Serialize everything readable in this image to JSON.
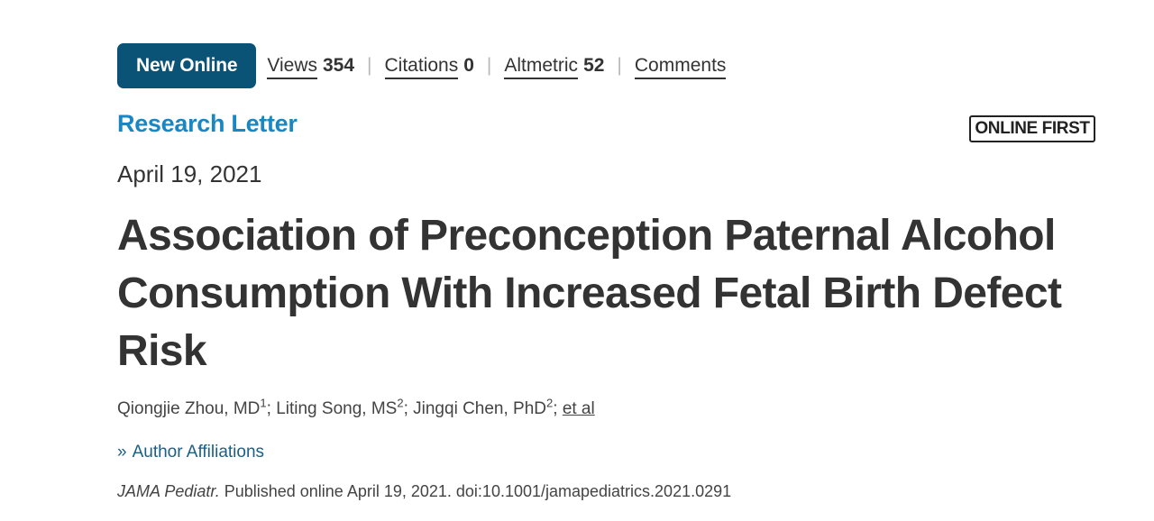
{
  "topbar": {
    "badge": "New Online",
    "metrics": [
      {
        "label": "Views",
        "value": "354"
      },
      {
        "label": "Citations",
        "value": "0"
      },
      {
        "label": "Altmetric",
        "value": "52"
      },
      {
        "label": "Comments",
        "value": ""
      }
    ],
    "separator": "|"
  },
  "article": {
    "section": "Research Letter",
    "status_badge": "ONLINE FIRST",
    "date": "April 19, 2021",
    "title": "Association of Preconception Paternal Alcohol Consumption With Increased Fetal Birth Defect Risk",
    "authors": [
      {
        "name": "Qiongjie Zhou, MD",
        "sup": "1",
        "sep": "; "
      },
      {
        "name": "Liting Song, MS",
        "sup": "2",
        "sep": "; "
      },
      {
        "name": "Jingqi Chen, PhD",
        "sup": "2",
        "sep": "; "
      }
    ],
    "et_al": "et al",
    "affiliations_link": "Author Affiliations",
    "affiliations_icon": "double-chevron-right-icon",
    "citation": {
      "journal": "JAMA Pediatr.",
      "text": " Published online April 19, 2021. doi:10.1001/jamapediatrics.2021.0291"
    }
  },
  "colors": {
    "badge_bg": "#0a5377",
    "section_label": "#1a87c3",
    "link": "#1c5f86",
    "title_text": "#333333"
  }
}
